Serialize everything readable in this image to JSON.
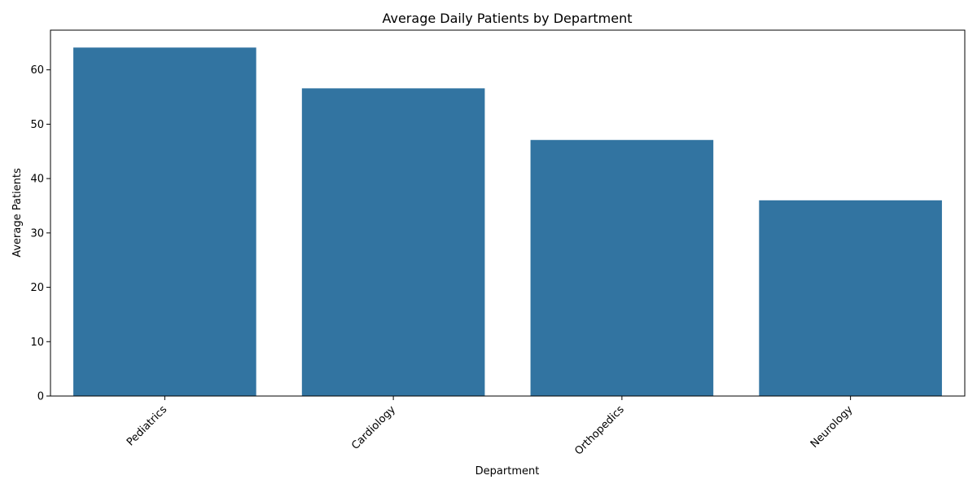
{
  "chart_data": {
    "type": "bar",
    "title": "Average Daily Patients by Department",
    "xlabel": "Department",
    "ylabel": "Average Patients",
    "categories": [
      "Pediatrics",
      "Cardiology",
      "Orthopedics",
      "Neurology"
    ],
    "values": [
      64.1,
      56.6,
      47.1,
      36.0
    ],
    "ylim": [
      0,
      67.3
    ],
    "yticks": [
      "0",
      "10",
      "20",
      "30",
      "40",
      "50",
      "60"
    ],
    "grid": false,
    "legend": "none",
    "bar_color": "#3274a1",
    "x_tick_rotation_deg": 45
  }
}
